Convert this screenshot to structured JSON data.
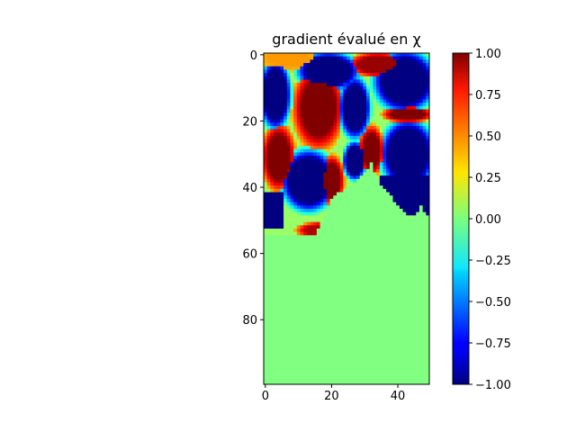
{
  "chart_data": {
    "type": "heatmap",
    "title": "gradient évalué en χ",
    "xlabel": "",
    "ylabel": "",
    "grid": false,
    "legend": "colorbar right",
    "colormap": "jet",
    "shape": [
      100,
      50
    ],
    "xlim": [
      -0.5,
      49.5
    ],
    "ylim": [
      99.5,
      -0.5
    ],
    "x_ticks": [
      0,
      20,
      40
    ],
    "y_ticks": [
      0,
      20,
      40,
      60,
      80
    ],
    "clim": [
      -1.0,
      1.0
    ],
    "colorbar_ticks": [
      -1.0,
      -0.75,
      -0.5,
      -0.25,
      0.0,
      0.25,
      0.5,
      0.75,
      1.0
    ],
    "colorbar_tick_labels": [
      "−1.00",
      "−0.75",
      "−0.50",
      "−0.25",
      "0.00",
      "0.25",
      "0.50",
      "0.75",
      "1.00"
    ],
    "background_value": 0.0,
    "regions": [
      {
        "kind": "ellipse",
        "cx": 7,
        "cy": 1,
        "rx": 7,
        "ry": 3,
        "value": 0.45
      },
      {
        "kind": "ellipse",
        "cx": 19,
        "cy": 5,
        "rx": 8,
        "ry": 5,
        "value": -1.0
      },
      {
        "kind": "ellipse",
        "cx": 3,
        "cy": 12,
        "rx": 4,
        "ry": 9,
        "value": -1.0
      },
      {
        "kind": "ellipse",
        "cx": 16,
        "cy": 16,
        "rx": 6,
        "ry": 10,
        "value": 1.0
      },
      {
        "kind": "ellipse",
        "cx": 27,
        "cy": 16,
        "rx": 4,
        "ry": 8,
        "value": -1.0
      },
      {
        "kind": "ellipse",
        "cx": 34,
        "cy": 3,
        "rx": 7,
        "ry": 3,
        "value": 0.95
      },
      {
        "kind": "ellipse",
        "cx": 42,
        "cy": 8,
        "rx": 8,
        "ry": 8,
        "value": -1.0
      },
      {
        "kind": "ellipse",
        "cx": 43,
        "cy": 18,
        "rx": 6,
        "ry": 2,
        "value": 1.0
      },
      {
        "kind": "ellipse",
        "cx": 4,
        "cy": 31,
        "rx": 4,
        "ry": 8,
        "value": 1.0
      },
      {
        "kind": "ellipse",
        "cx": 13,
        "cy": 38,
        "rx": 7,
        "ry": 8,
        "value": -1.0
      },
      {
        "kind": "ellipse",
        "cx": 20,
        "cy": 38,
        "rx": 3,
        "ry": 6,
        "value": 1.0
      },
      {
        "kind": "ellipse",
        "cx": 27,
        "cy": 32,
        "rx": 3,
        "ry": 5,
        "value": -1.0
      },
      {
        "kind": "ellipse",
        "cx": 32,
        "cy": 29,
        "rx": 3,
        "ry": 6,
        "value": 1.0
      },
      {
        "kind": "ellipse",
        "cx": 43,
        "cy": 30,
        "rx": 7,
        "ry": 9,
        "value": -1.0
      },
      {
        "kind": "ellipse",
        "cx": 17,
        "cy": 53,
        "rx": 6,
        "ry": 2,
        "value": 0.9
      },
      {
        "kind": "rect",
        "x0": 0,
        "x1": 5,
        "y0": 42,
        "y1": 52,
        "value": -1.0
      },
      {
        "kind": "rect",
        "x0": 35,
        "x1": 49,
        "y0": 37,
        "y1": 48,
        "value": -1.0
      }
    ],
    "flat_region": {
      "value": 0.0,
      "boundary_y_at_x": [
        [
          0,
          55
        ],
        [
          5,
          55
        ],
        [
          10,
          55
        ],
        [
          15,
          55
        ],
        [
          20,
          44
        ],
        [
          22,
          42
        ],
        [
          25,
          40
        ],
        [
          28,
          38
        ],
        [
          30,
          36
        ],
        [
          32,
          33
        ],
        [
          35,
          40
        ],
        [
          38,
          43
        ],
        [
          41,
          47
        ],
        [
          44,
          50
        ],
        [
          47,
          46
        ],
        [
          49,
          49
        ]
      ]
    }
  }
}
